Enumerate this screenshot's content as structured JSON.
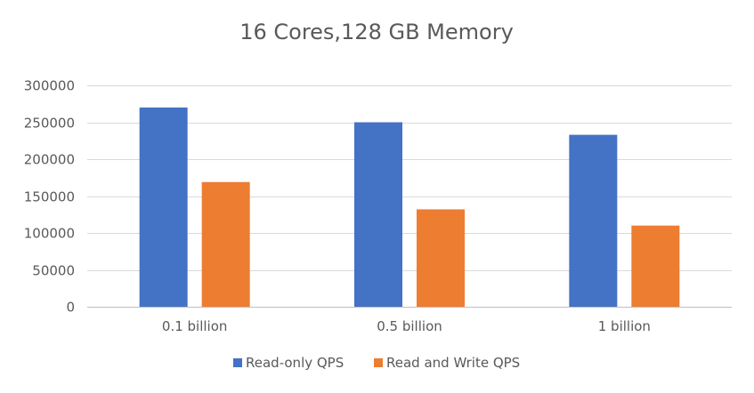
{
  "chart_data": {
    "type": "bar",
    "title": "16 Cores,128 GB Memory",
    "categories": [
      "0.1 billion",
      "0.5 billion",
      "1 billion"
    ],
    "series": [
      {
        "name": "Read-only QPS",
        "values": [
          270000,
          250000,
          233000
        ],
        "color": "#4472C4"
      },
      {
        "name": "Read and Write QPS",
        "values": [
          169000,
          132000,
          110000
        ],
        "color": "#ED7D31"
      }
    ],
    "ylim": [
      0,
      300000
    ],
    "yticks": [
      0,
      50000,
      100000,
      150000,
      200000,
      250000,
      300000
    ],
    "ytick_labels": [
      "0",
      "50000",
      "100000",
      "150000",
      "200000",
      "250000",
      "300000"
    ],
    "xlabel": "",
    "ylabel": "",
    "grid": true,
    "legend_position": "bottom"
  }
}
